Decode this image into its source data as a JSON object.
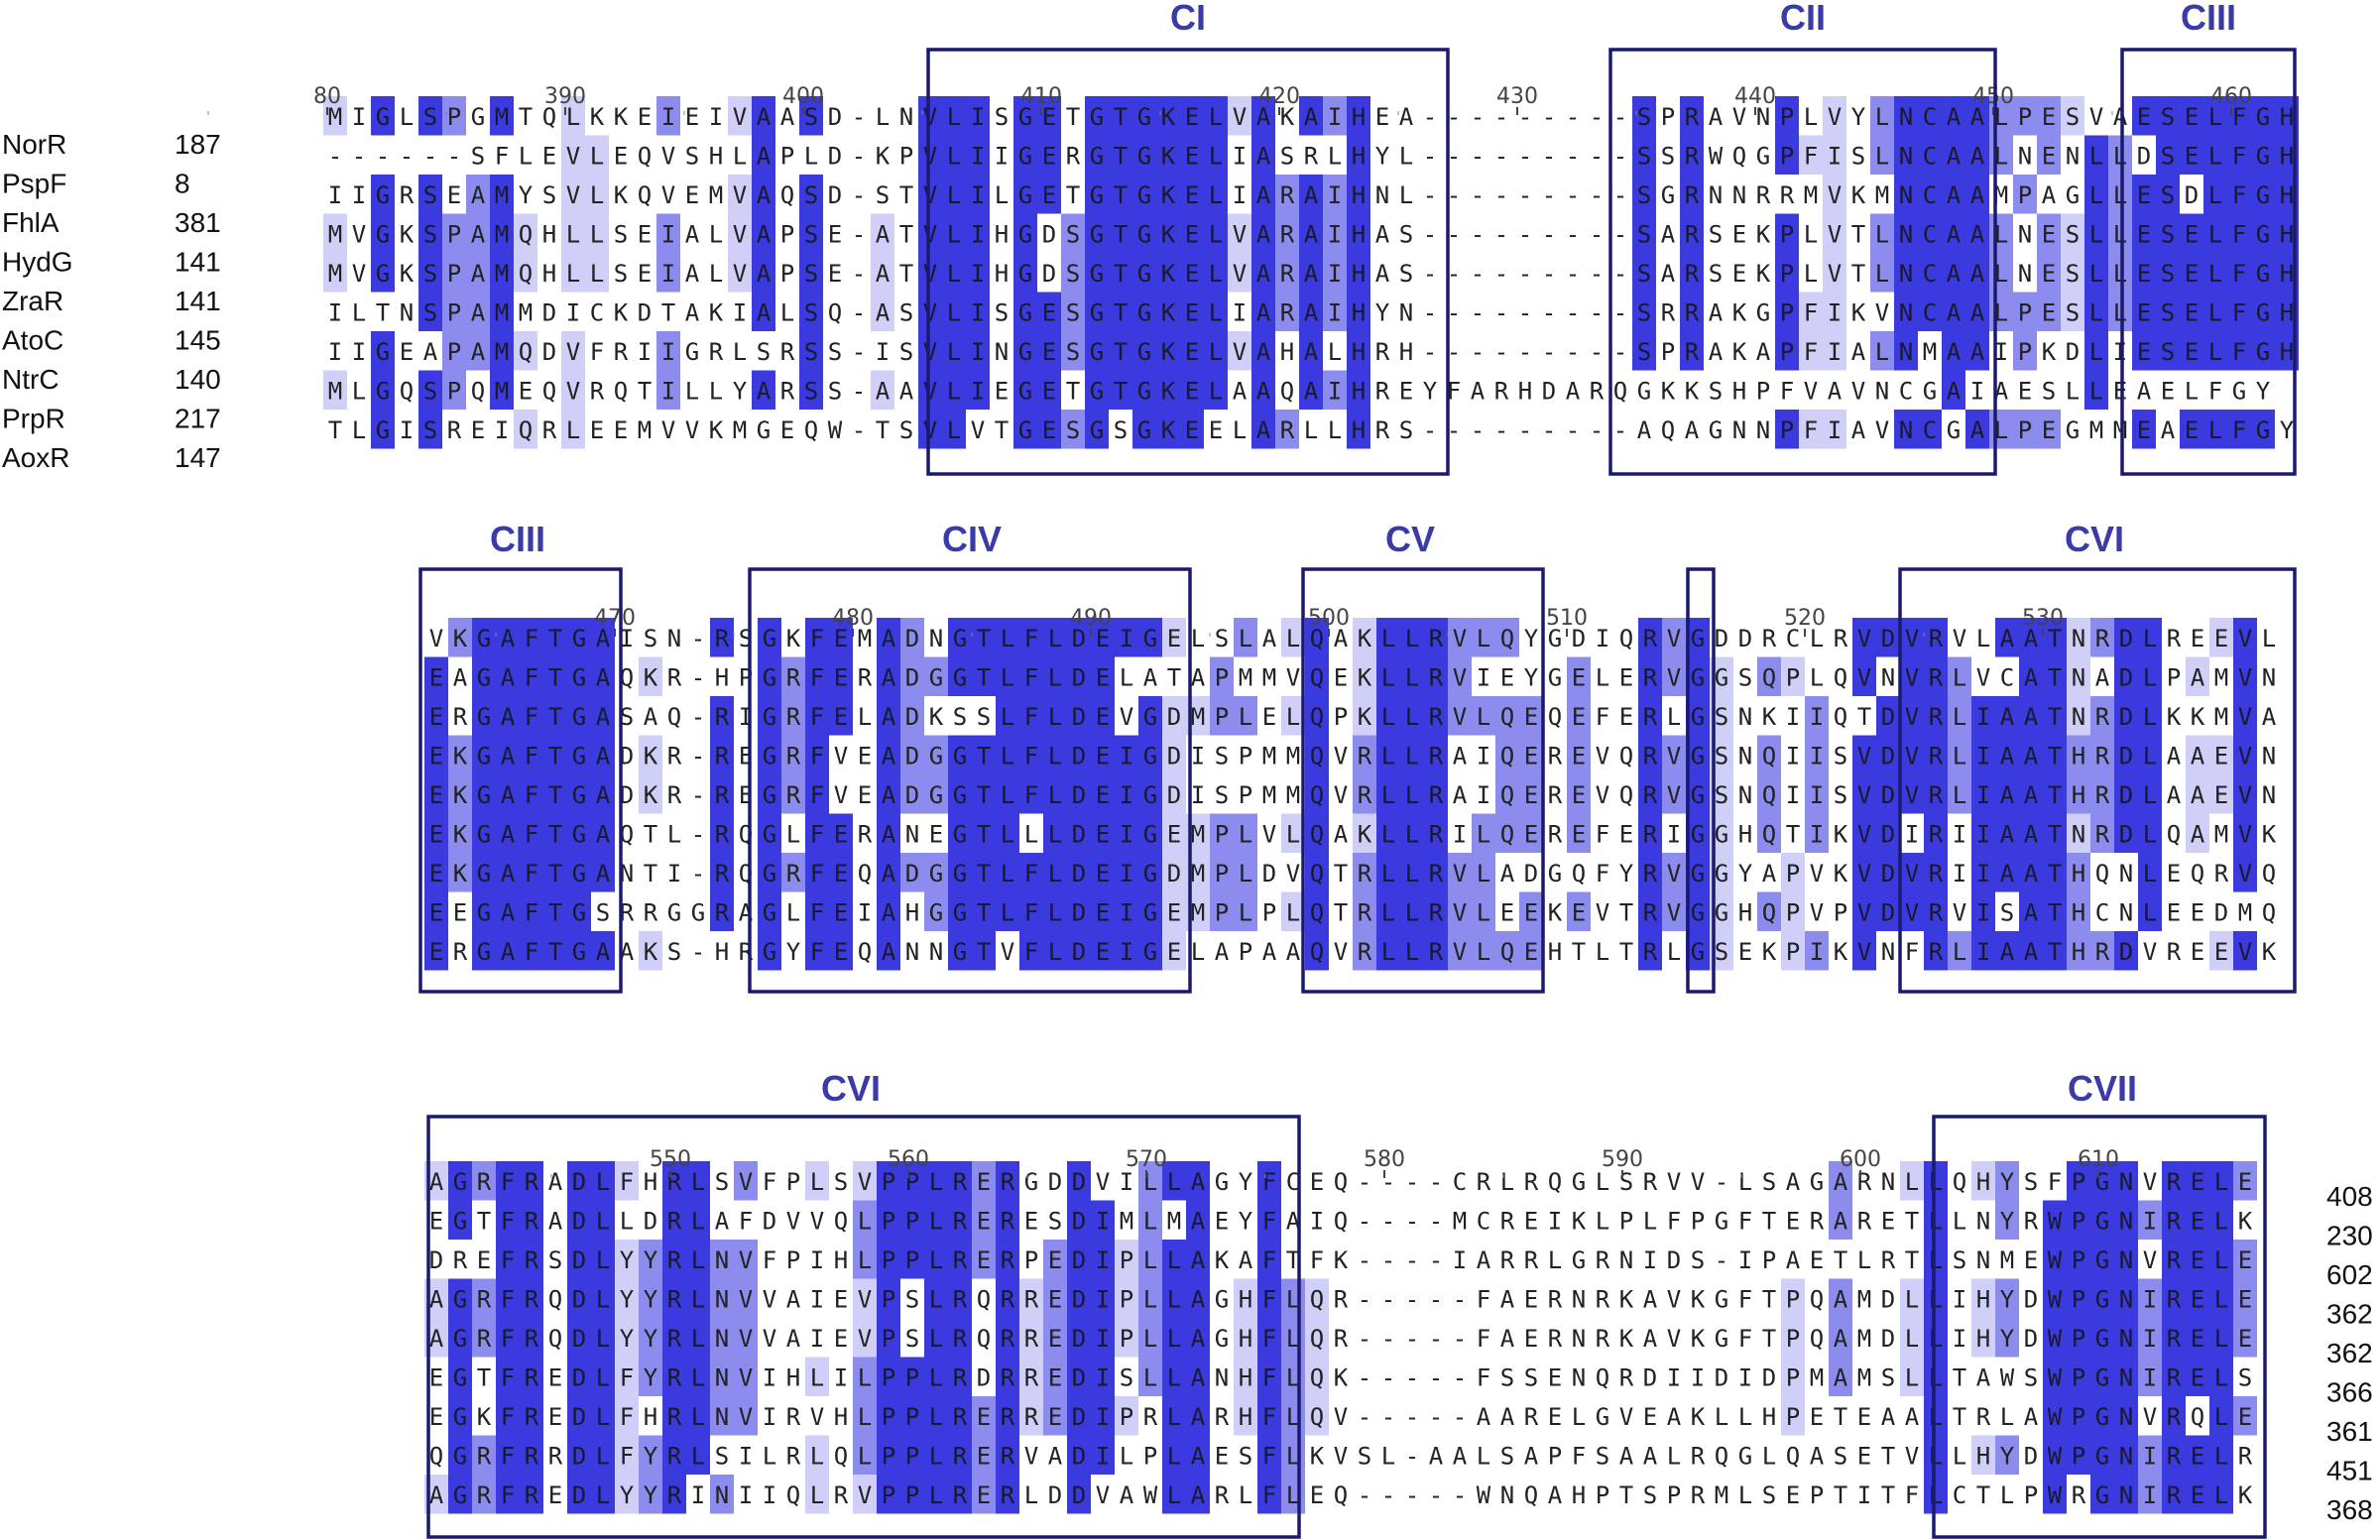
{
  "figure": {
    "colors": {
      "dark": "#3a3adf",
      "medium": "#8c8cee",
      "light": "#cfcff8",
      "box": "#1a1a6e",
      "region_label": "#3a3aa8"
    },
    "sequences": [
      {
        "name": "NorR",
        "start": "187"
      },
      {
        "name": "PspF",
        "start": "8"
      },
      {
        "name": "FhlA",
        "start": "381"
      },
      {
        "name": "HydG",
        "start": "141"
      },
      {
        "name": "ZraR",
        "start": "141"
      },
      {
        "name": "AtoC",
        "start": "145"
      },
      {
        "name": "NtrC",
        "start": "140"
      },
      {
        "name": "PrpR",
        "start": "217"
      },
      {
        "name": "AoxR",
        "start": "147"
      }
    ],
    "end_numbers": [
      "408",
      "230",
      "602",
      "362",
      "362",
      "366",
      "361",
      "451",
      "368"
    ],
    "blocks": [
      {
        "rows": [
          "MIGLSPGMTQLKKEIEIVAASD-LNVLISGETGTGKELVAKAIHEA---------SPRAVNPLVYLNCAALPESVAESELFGH",
          "------SFLEVLEQVSHLAPLD-KPVLIIGERGTGKELIASRLHYL---------SSRWQGPFISLNCAALNENLLDSELFGH",
          "IIGRSEAMYSVLKQVEMVAQSD-STVLILGETGTGKELIARAIHNL---------SGRNNRRMVKMNCAAMPAGLLESDLFGH",
          "MVGKSPAMQHLLSEIALVAPSE-ATVLIHGDSGTGKELVARAIHAS---------SARSEKPLVTLNCAALNESLLESELFGH",
          "MVGKSPAMQHLLSEIALVAPSE-ATVLIHGDSGTGKELVARAIHAS---------SARSEKPLVTLNCAALNESLLESELFGH",
          "ILTNSPAMMDICKDTAKIALSQ-ASVLISGESGTGKELIARAIHYN---------SRRAKGPFIKVNCAALPESLLESELFGH",
          "IIGEAPAMQDVFRIIGRLSRSS-ISVLINGESGTGKELVAHALHRH---------SPRAKAPFIALNMAAIPKDLIESELFGH",
          "MLGQSPQMEQVRQTILLYARSS-AAVLIEGETGTGKELAAQAIHREYFARHDARQGKKSHPFVAVNCGAIAESLLEAELFGY",
          "TLGISREIQRLEEMVVKMGEQW-TSVLVTGESGSGKEELARLLHRS---------AQAGNNPFIAVNCGALPEGMMEAELFGY"
        ]
      },
      {
        "rows": [
          "VKGAFTGAISN-RSGKFEMADNGTLFLDEIGELSLALQAKLLRVLQYGDIQRVGDDRCLRVDVRVLAATNRDLREEVL",
          "EAGAFTGAQKR-HPGRFERADGGTLFLDELATAPMMVQEKLLRVIEYGELERVGGSQPLQVNVRLVCATNADLPAMVN",
          "ERGAFTGASAQ-RIGRFELADKSSLFLDEVGDMPLELQPKLLRVLQEQEFERLGSNKIIQTDVRLIAATNRDLKKMVA",
          "EKGAFTGADKR-REGRFVEADGGTLFLDEIGDISPMMQVRLLRAIQEREVQRVGSNQIISVDVRLIAATHRDLAAEVN",
          "EKGAFTGADKR-REGRFVEADGGTLFLDEIGDISPMMQVRLLRAIQEREVQRVGSNQIISVDVRLIAATHRDLAAEVN",
          "EKGAFTGAQTL-RQGLFERANEGTLLLDEIGEMPLVLQAKLLRILQEREFERIGGHQTIKVDIRIIAATNRDLQAMVK",
          "EKGAFTGANTI-RQGRFEQADGGTLFLDEIGDMPLDVQTRLLRVLADGQFYRVGGYAPVKVDVRIIAATHQNLEQRVQ",
          "EEGAFTGSRRGGRAGLFEIAHGGTLFLDEIGEMPLPLQTRLLRVLEEKEVTRVGGHQPVPVDVRVISATHCNLEEDMQ",
          "ERGAFTGAAKS-HRGYFEQANNGTVFLDEIGELAPAAQVRLLRVLQEHTLTRLGSEKPIKVNFRLIAATHRDVREEVK"
        ]
      },
      {
        "rows": [
          "AGRFRADLFHRLSVFPLSVPPLRERGDDVILLAGYFCEQ----CRLRQGLSRVV-LSAGARNLLQHYSFPGNVRELE",
          "EGTFRADLLDRLAFDVVQLPPLRERESDIMLMAEYFAIQ----MCREIKLPLFPGFTERARETLLNYRWPGNIRELK",
          "DREFRSDLYYRLNVFPIHLPPLRERPEDIPLLAKAFTFK----IARRLGRNIDS-IPAETLRTLSNMEWPGNVRELE",
          "AGRFRQDLYYRLNVVAIEVPSLRQRREDIPLLAGHFLQR-----FAERNRKAVKGFTPQAMDLLIHYDWPGNIRELE",
          "AGRFRQDLYYRLNVVAIEVPSLRQRREDIPLLAGHFLQR-----FAERNRKAVKGFTPQAMDLLIHYDWPGNIRELE",
          "EGTFREDLFYRLNVIHLILPPLRDRREDISLLANHFLQK-----FSSENQRDIIDIDPMAMSLLTAWSWPGNIRELS",
          "EGKFREDLFHRLNVIRVHLPPLRERREDIPRLARHFLQV-----AARELGVEAKLLHPETEAALTRLAWPGNVRQLE",
          "QGRFRRDLFYRLSILRLQLPPLRERVADILPLAESFLKVSL-AALSAPFSAALRQGLQASETVLLHYDWPGNIRELR",
          "AGRFREDLYYRINIIQLRVPPLRERLDDVAWLARLFLEQ-----WNQAHPTSPRMLSEPTITFLCTLPWRGNIRELK"
        ]
      }
    ],
    "ruler_top": [
      "80",
      "390",
      "400",
      "410",
      "420",
      "430",
      "440",
      "450",
      "460"
    ],
    "ruler_mid": [
      "470",
      "480",
      "490",
      "500",
      "510",
      "520",
      "530"
    ],
    "ruler_bot": [
      "550",
      "560",
      "570",
      "580",
      "590",
      "600",
      "610"
    ],
    "regions": {
      "top": [
        "CI",
        "CII",
        "CIII"
      ],
      "mid": [
        "CIII",
        "CIV",
        "CV",
        "CVI"
      ],
      "bot": [
        "CVI",
        "CVII"
      ]
    }
  }
}
